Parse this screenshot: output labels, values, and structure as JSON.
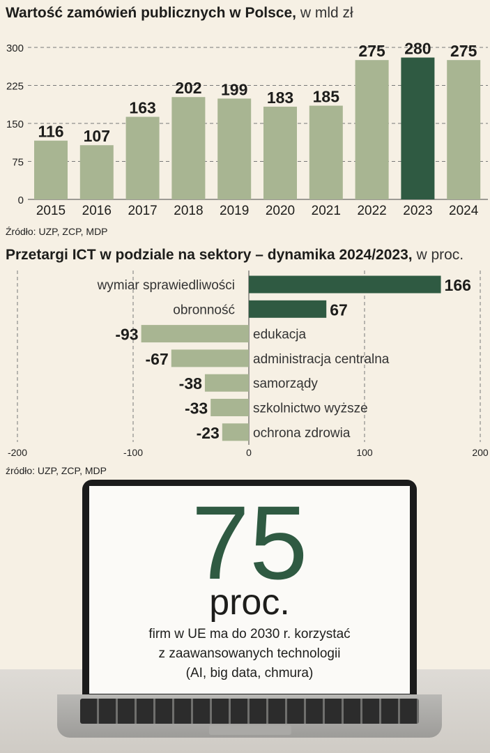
{
  "chart_data": [
    {
      "type": "bar",
      "title": "Wartość zamówień publicznych w Polsce,",
      "subtitle": "w mld zł",
      "categories": [
        "2015",
        "2016",
        "2017",
        "2018",
        "2019",
        "2020",
        "2021",
        "2022",
        "2023",
        "2024"
      ],
      "values": [
        116,
        107,
        163,
        202,
        199,
        183,
        185,
        275,
        280,
        275
      ],
      "yticks": [
        "300",
        "225",
        "150",
        "75",
        "0"
      ],
      "ylim": [
        0,
        300
      ],
      "highlight_category": "2023",
      "grid": true,
      "source": "Źródło: UZP, ZCP, MDP",
      "colors": {
        "bar": "#a8b592",
        "highlight": "#2f5a42"
      }
    },
    {
      "type": "bar",
      "orientation": "horizontal",
      "title": "Przetargi ICT w podziale na sektory – dynamika 2024/2023,",
      "subtitle": "w proc.",
      "categories": [
        "wymiar sprawiedliwości",
        "obronność",
        "edukacja",
        "administracja centralna",
        "samorządy",
        "szkolnictwo wyższe",
        "ochrona zdrowia"
      ],
      "values": [
        166,
        67,
        -93,
        -67,
        -38,
        -33,
        -23
      ],
      "value_labels": [
        "166",
        "67",
        "-93",
        "-67",
        "-38",
        "-33",
        "-23"
      ],
      "xticks": [
        "-200",
        "-100",
        "0",
        "100",
        "200"
      ],
      "xlim": [
        -200,
        200
      ],
      "grid": true,
      "source": "źródło: UZP, ZCP, MDP",
      "colors": {
        "positive": "#2f5a42",
        "negative": "#a8b592"
      }
    }
  ],
  "infobox": {
    "number": "75",
    "unit": "proc.",
    "lines": [
      "firm w UE ma do 2030 r. korzystać",
      "z zaawansowanych technologii",
      "(AI, big data, chmura)"
    ]
  }
}
